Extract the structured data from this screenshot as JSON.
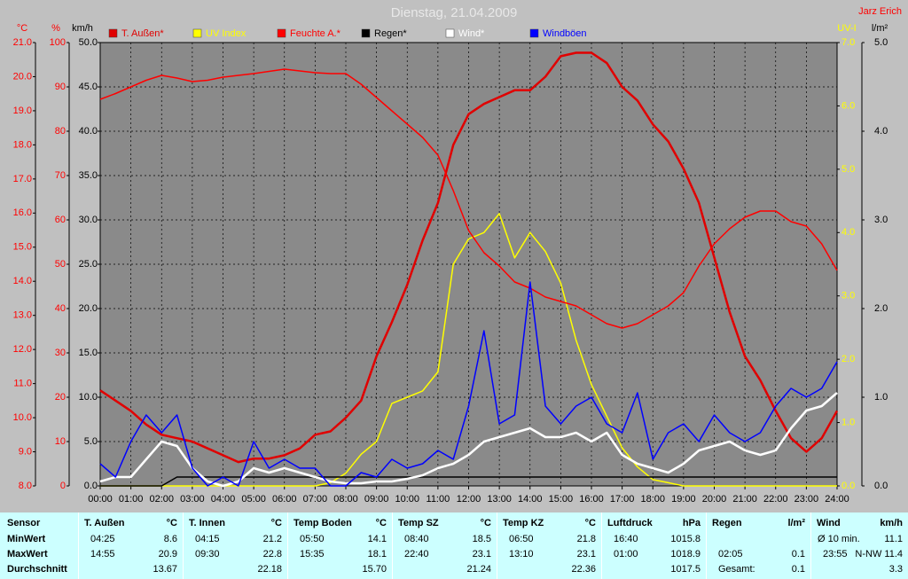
{
  "chart_data": {
    "type": "line",
    "title": "Dienstag, 21.04.2009",
    "author": "Jarz Erich",
    "grid": true,
    "xlim": [
      0,
      24
    ],
    "xticks": [
      {
        "value": 0,
        "label": "00:00"
      },
      {
        "value": 1,
        "label": "01:00"
      },
      {
        "value": 2,
        "label": "02:00"
      },
      {
        "value": 3,
        "label": "03:00"
      },
      {
        "value": 4,
        "label": "04:00"
      },
      {
        "value": 5,
        "label": "05:00"
      },
      {
        "value": 6,
        "label": "06:00"
      },
      {
        "value": 7,
        "label": "07:00"
      },
      {
        "value": 8,
        "label": "08:00"
      },
      {
        "value": 9,
        "label": "09:00"
      },
      {
        "value": 10,
        "label": "10:00"
      },
      {
        "value": 11,
        "label": "11:00"
      },
      {
        "value": 12,
        "label": "12:00"
      },
      {
        "value": 13,
        "label": "13:00"
      },
      {
        "value": 14,
        "label": "14:00"
      },
      {
        "value": 15,
        "label": "15:00"
      },
      {
        "value": 16,
        "label": "16:00"
      },
      {
        "value": 17,
        "label": "17:00"
      },
      {
        "value": 18,
        "label": "18:00"
      },
      {
        "value": 19,
        "label": "19:00"
      },
      {
        "value": 20,
        "label": "20:00"
      },
      {
        "value": 21,
        "label": "21:00"
      },
      {
        "value": 22,
        "label": "22:00"
      },
      {
        "value": 23,
        "label": "23:00"
      },
      {
        "value": 24,
        "label": "24:00"
      }
    ],
    "axes": [
      {
        "unit": "°C",
        "color": "#ff0000",
        "lim": [
          8,
          21
        ],
        "ticks": [
          {
            "value": 8,
            "label": "8.0"
          },
          {
            "value": 9,
            "label": "9.0"
          },
          {
            "value": 10,
            "label": "10.0"
          },
          {
            "value": 11,
            "label": "11.0"
          },
          {
            "value": 12,
            "label": "12.0"
          },
          {
            "value": 13,
            "label": "13.0"
          },
          {
            "value": 14,
            "label": "14.0"
          },
          {
            "value": 15,
            "label": "15.0"
          },
          {
            "value": 16,
            "label": "16.0"
          },
          {
            "value": 17,
            "label": "17.0"
          },
          {
            "value": 18,
            "label": "18.0"
          },
          {
            "value": 19,
            "label": "19.0"
          },
          {
            "value": 20,
            "label": "20.0"
          },
          {
            "value": 21,
            "label": "21.0"
          }
        ]
      },
      {
        "unit": "%",
        "color": "#ff0000",
        "lim": [
          0,
          100
        ],
        "ticks": [
          0,
          10,
          20,
          30,
          40,
          50,
          60,
          70,
          80,
          90,
          100
        ]
      },
      {
        "unit": "km/h",
        "color": "#000000",
        "lim": [
          0,
          50
        ],
        "grid": true,
        "ticks": [
          {
            "value": 0,
            "label": "0.0"
          },
          {
            "value": 5,
            "label": "5.0"
          },
          {
            "value": 10,
            "label": "10.0"
          },
          {
            "value": 15,
            "label": "15.0"
          },
          {
            "value": 20,
            "label": "20.0"
          },
          {
            "value": 25,
            "label": "25.0"
          },
          {
            "value": 30,
            "label": "30.0"
          },
          {
            "value": 35,
            "label": "35.0"
          },
          {
            "value": 40,
            "label": "40.0"
          },
          {
            "value": 45,
            "label": "45.0"
          },
          {
            "value": 50,
            "label": "50.0"
          }
        ]
      },
      {
        "unit": "UV-I",
        "color": "#ffff00",
        "lim": [
          0,
          7
        ],
        "ticks": [
          {
            "value": 0,
            "label": "0.0"
          },
          {
            "value": 1,
            "label": "1.0"
          },
          {
            "value": 2,
            "label": "2.0"
          },
          {
            "value": 3,
            "label": "3.0"
          },
          {
            "value": 4,
            "label": "4.0"
          },
          {
            "value": 5,
            "label": "5.0"
          },
          {
            "value": 6,
            "label": "6.0"
          },
          {
            "value": 7,
            "label": "7.0"
          }
        ]
      },
      {
        "unit": "l/m²",
        "color": "#000000",
        "lim": [
          0,
          5
        ],
        "ticks": [
          {
            "value": 0,
            "label": "0.0"
          },
          {
            "value": 1,
            "label": "1.0"
          },
          {
            "value": 2,
            "label": "2.0"
          },
          {
            "value": 3,
            "label": "3.0"
          },
          {
            "value": 4,
            "label": "4.0"
          },
          {
            "value": 5,
            "label": "5.0"
          }
        ]
      }
    ],
    "x": [
      0,
      0.5,
      1,
      1.5,
      2,
      2.5,
      3,
      3.5,
      4,
      4.5,
      5,
      5.5,
      6,
      6.5,
      7,
      7.5,
      8,
      8.5,
      9,
      9.5,
      10,
      10.5,
      11,
      11.5,
      12,
      12.5,
      13,
      13.5,
      14,
      14.5,
      15,
      15.5,
      16,
      16.5,
      17,
      17.5,
      18,
      18.5,
      19,
      19.5,
      20,
      20.5,
      21,
      21.5,
      22,
      22.5,
      23,
      23.5,
      24
    ],
    "series": [
      {
        "name": "T. Außen*",
        "color": "#e00000",
        "axis": 0,
        "values": [
          10.8,
          10.5,
          10.2,
          9.8,
          9.5,
          9.4,
          9.3,
          9.1,
          8.9,
          8.7,
          8.8,
          8.8,
          8.9,
          9.1,
          9.5,
          9.6,
          10.0,
          10.5,
          11.8,
          12.8,
          13.9,
          15.2,
          16.3,
          18.0,
          18.9,
          19.2,
          19.4,
          19.6,
          19.6,
          20.0,
          20.6,
          20.7,
          20.7,
          20.4,
          19.7,
          19.3,
          18.6,
          18.1,
          17.3,
          16.3,
          14.7,
          13.1,
          11.8,
          11.1,
          10.2,
          9.4,
          9.0,
          9.4,
          10.2
        ]
      },
      {
        "name": "UV Index",
        "color": "#ffff00",
        "axis": 3,
        "values": [
          0,
          0,
          0,
          0,
          0,
          0,
          0,
          0,
          0,
          0,
          0,
          0,
          0,
          0,
          0,
          0.05,
          0.2,
          0.5,
          0.7,
          1.3,
          1.4,
          1.5,
          1.8,
          3.5,
          3.9,
          4.0,
          4.3,
          3.6,
          4.0,
          3.7,
          3.2,
          2.3,
          1.6,
          1.1,
          0.6,
          0.3,
          0.1,
          0.05,
          0,
          0,
          0,
          0,
          0,
          0,
          0,
          0,
          0,
          0,
          0
        ]
      },
      {
        "name": "Feuchte A.*",
        "color": "#ff0000",
        "axis": 1,
        "values": [
          87.2,
          88.5,
          90,
          91.5,
          92.6,
          92,
          91.2,
          91.5,
          92.2,
          92.6,
          93,
          93.5,
          94,
          93.6,
          93.2,
          93,
          93,
          90.6,
          87.6,
          84.6,
          81.6,
          78.6,
          74.6,
          66.6,
          57.6,
          52.6,
          49.6,
          46,
          44.6,
          42.6,
          41.6,
          40.6,
          38.6,
          36.6,
          35.6,
          36.6,
          38.6,
          40.6,
          43.6,
          49.6,
          54.6,
          58,
          60.6,
          62,
          62,
          59.6,
          58.6,
          54.6,
          48.6
        ]
      },
      {
        "name": "Regen*",
        "color": "#000000",
        "axis": 4,
        "values": [
          0,
          0,
          0,
          0,
          0,
          0.1,
          0.1,
          0.1,
          0.1,
          0.1,
          0.1,
          0.1,
          0.1,
          0.1,
          0.1,
          0.1,
          0.1,
          0.1,
          0.1,
          0.1,
          0.1,
          0.1,
          0.1,
          0.1,
          0.1,
          0.1,
          0.1,
          0.1,
          0.1,
          0.1,
          0.1,
          0.1,
          0.1,
          0.1,
          0.1,
          0.1,
          0.1,
          0.1,
          0.1,
          0.1,
          0.1,
          0.1,
          0.1,
          0.1,
          0.1,
          0.1,
          0.1,
          0.1,
          0.1
        ]
      },
      {
        "name": "Wind*",
        "color": "#ffffff",
        "axis": 2,
        "values": [
          0.5,
          1,
          1,
          3,
          5,
          4.5,
          2,
          0.5,
          0,
          0.5,
          2,
          1.5,
          2,
          1.5,
          1,
          0.5,
          0.3,
          0.3,
          0.5,
          0.5,
          0.8,
          1.2,
          2,
          2.5,
          3.5,
          5,
          5.5,
          6,
          6.5,
          5.5,
          5.5,
          6,
          5,
          6,
          3.5,
          2.5,
          2,
          1.5,
          2.5,
          4,
          4.5,
          5,
          4,
          3.5,
          4,
          6.5,
          8.5,
          9,
          10.5
        ]
      },
      {
        "name": "Windböen",
        "color": "#0000ff",
        "axis": 2,
        "values": [
          2.5,
          1,
          5,
          8,
          6,
          8,
          2,
          0,
          1,
          0,
          5,
          2,
          3,
          2,
          2,
          0,
          0,
          1.5,
          1,
          3,
          2,
          2.5,
          4,
          3,
          9,
          17.5,
          7,
          8,
          23,
          9,
          7,
          9,
          10,
          7,
          6,
          10.5,
          3,
          6,
          7,
          5,
          8,
          6,
          5,
          6,
          9,
          11,
          10,
          11,
          14
        ]
      }
    ]
  },
  "table": {
    "labels": [
      "Sensor",
      "MinWert",
      "MaxWert",
      "Durchschnitt"
    ],
    "groups": [
      {
        "header": "T. Außen",
        "unit": "°C",
        "rows": [
          [
            "04:25",
            "8.6"
          ],
          [
            "14:55",
            "20.9"
          ],
          [
            null,
            "13.67"
          ]
        ]
      },
      {
        "header": "T. Innen",
        "unit": "°C",
        "rows": [
          [
            "04:15",
            "21.2"
          ],
          [
            "09:30",
            "22.8"
          ],
          [
            null,
            "22.18"
          ]
        ]
      },
      {
        "header": "Temp Boden",
        "unit": "°C",
        "rows": [
          [
            "05:50",
            "14.1"
          ],
          [
            "15:35",
            "18.1"
          ],
          [
            null,
            "15.70"
          ]
        ]
      },
      {
        "header": "Temp SZ",
        "unit": "°C",
        "rows": [
          [
            "08:40",
            "18.5"
          ],
          [
            "22:40",
            "23.1"
          ],
          [
            null,
            "21.24"
          ]
        ]
      },
      {
        "header": "Temp KZ",
        "unit": "°C",
        "rows": [
          [
            "06:50",
            "21.8"
          ],
          [
            "13:10",
            "23.1"
          ],
          [
            null,
            "22.36"
          ]
        ]
      },
      {
        "header": "Luftdruck",
        "unit": "hPa",
        "rows": [
          [
            "16:40",
            "1015.8"
          ],
          [
            "01:00",
            "1018.9"
          ],
          [
            null,
            "1017.5"
          ]
        ]
      },
      {
        "header": "Regen",
        "unit": "l/m²",
        "rows": [
          [
            null,
            null
          ],
          [
            "02:05",
            "0.1"
          ],
          [
            "Gesamt:",
            "0.1"
          ]
        ]
      },
      {
        "header": "Wind",
        "unit": "km/h",
        "rows": [
          [
            "Ø 10 min.",
            "11.1"
          ],
          [
            "23:55",
            "N-NW 11.4"
          ],
          [
            null,
            "3.3"
          ]
        ]
      }
    ]
  }
}
